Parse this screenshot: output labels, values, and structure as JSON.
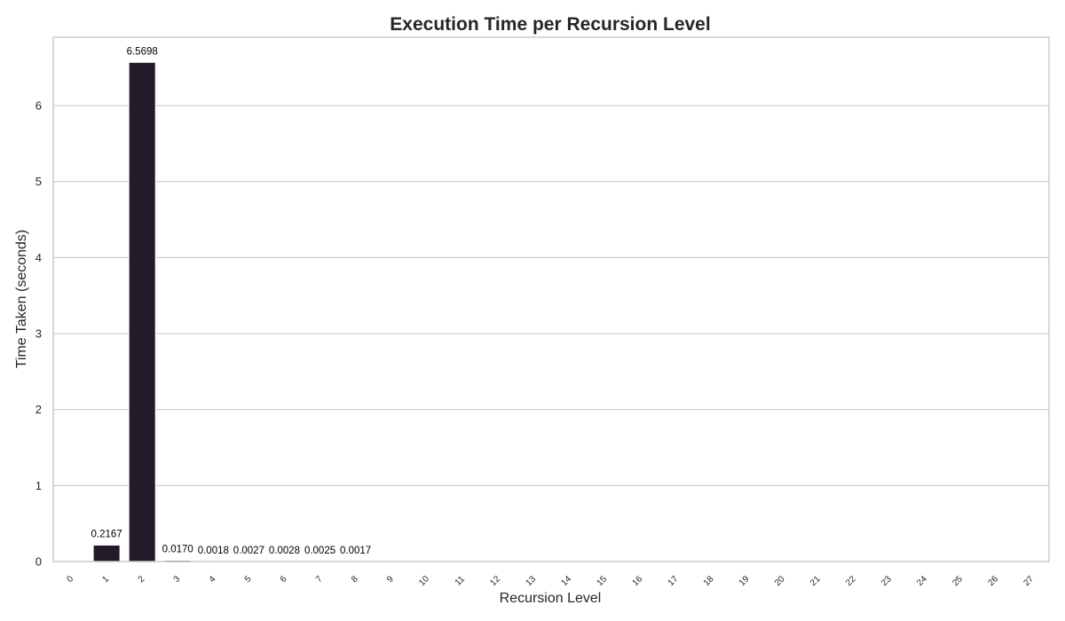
{
  "chart_data": {
    "type": "bar",
    "title": "Execution Time per Recursion Level",
    "xlabel": "Recursion Level",
    "ylabel": "Time Taken (seconds)",
    "categories": [
      "0",
      "1",
      "2",
      "3",
      "4",
      "5",
      "6",
      "7",
      "8",
      "9",
      "10",
      "11",
      "12",
      "13",
      "14",
      "15",
      "16",
      "17",
      "18",
      "19",
      "20",
      "21",
      "22",
      "23",
      "24",
      "25",
      "26",
      "27"
    ],
    "values": [
      0,
      0.2167,
      6.5698,
      0.017,
      0.0018,
      0.0027,
      0.0028,
      0.0025,
      0.0017,
      0,
      0,
      0,
      0,
      0,
      0,
      0,
      0,
      0,
      0,
      0,
      0,
      0,
      0,
      0,
      0,
      0,
      0,
      0
    ],
    "data_labels": [
      "",
      "0.2167",
      "6.5698",
      "0.0170",
      "0.0018",
      "0.0027",
      "0.0028",
      "0.0025",
      "0.0017",
      "",
      "",
      "",
      "",
      "",
      "",
      "",
      "",
      "",
      "",
      "",
      "",
      "",
      "",
      "",
      "",
      "",
      "",
      ""
    ],
    "yticks": [
      0,
      1,
      2,
      3,
      4,
      5,
      6
    ],
    "ylim": [
      0,
      6.9
    ],
    "grid": "horizontal",
    "colors": {
      "bar": "#231a2a",
      "grid": "#cccccc",
      "frame": "#cccccc"
    }
  }
}
